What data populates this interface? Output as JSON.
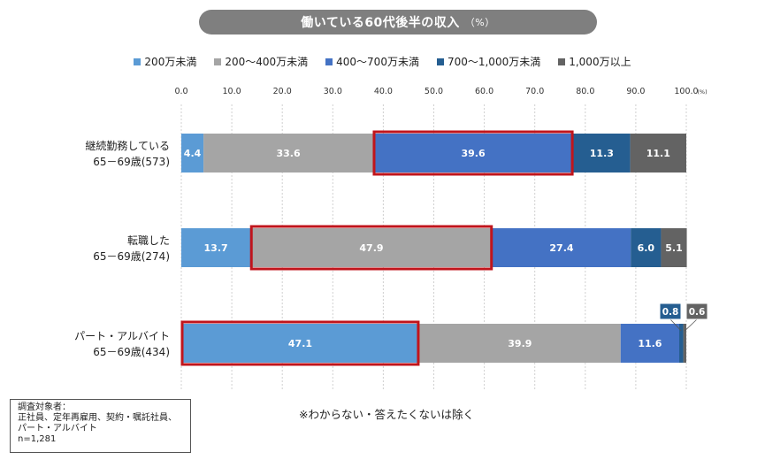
{
  "title": "働いている60代後半の収入",
  "title_unit": "（%）",
  "colors": {
    "accent_highlight": "#c0151c",
    "series": [
      "#5b9bd5",
      "#a5a5a5",
      "#4472c4",
      "#255e91",
      "#636363"
    ]
  },
  "legend": [
    {
      "label": "200万未満"
    },
    {
      "label": "200～400万未満"
    },
    {
      "label": "400～700万未満"
    },
    {
      "label": "700～1,000万未満"
    },
    {
      "label": "1,000万以上"
    }
  ],
  "chart_data": {
    "type": "bar",
    "orientation": "horizontal",
    "stacked": true,
    "xlim": [
      0,
      100
    ],
    "x_ticks": [
      "0.0",
      "10.0",
      "20.0",
      "30.0",
      "40.0",
      "50.0",
      "60.0",
      "70.0",
      "80.0",
      "90.0",
      "100.0"
    ],
    "x_unit": "(%)",
    "grid": true,
    "legend_position": "top",
    "categories": [
      {
        "line1": "継続勤務している",
        "line2": "65－69歳(573)"
      },
      {
        "line1": "転職した",
        "line2": "65－69歳(274)"
      },
      {
        "line1": "パート・アルバイト",
        "line2": "65－69歳(434)"
      }
    ],
    "series": [
      {
        "name": "200万未満",
        "values": [
          4.4,
          13.7,
          47.1
        ]
      },
      {
        "name": "200～400万未満",
        "values": [
          33.6,
          47.9,
          39.9
        ]
      },
      {
        "name": "400～700万未満",
        "values": [
          39.6,
          27.4,
          11.6
        ]
      },
      {
        "name": "700～1,000万未満",
        "values": [
          11.3,
          6.0,
          0.8
        ]
      },
      {
        "name": "1,000万以上",
        "values": [
          11.1,
          5.1,
          0.6
        ]
      }
    ],
    "highlights": [
      {
        "category": 0,
        "series": 2
      },
      {
        "category": 1,
        "series": 1
      },
      {
        "category": 2,
        "series": 0
      }
    ]
  },
  "note_box": {
    "line1": "調査対象者：",
    "line2": "正社員、定年再雇用、契約・嘱託社員、",
    "line3": "パート・アルバイト",
    "line4": "n=1,281"
  },
  "footnote": "※わからない・答えたくないは除く"
}
